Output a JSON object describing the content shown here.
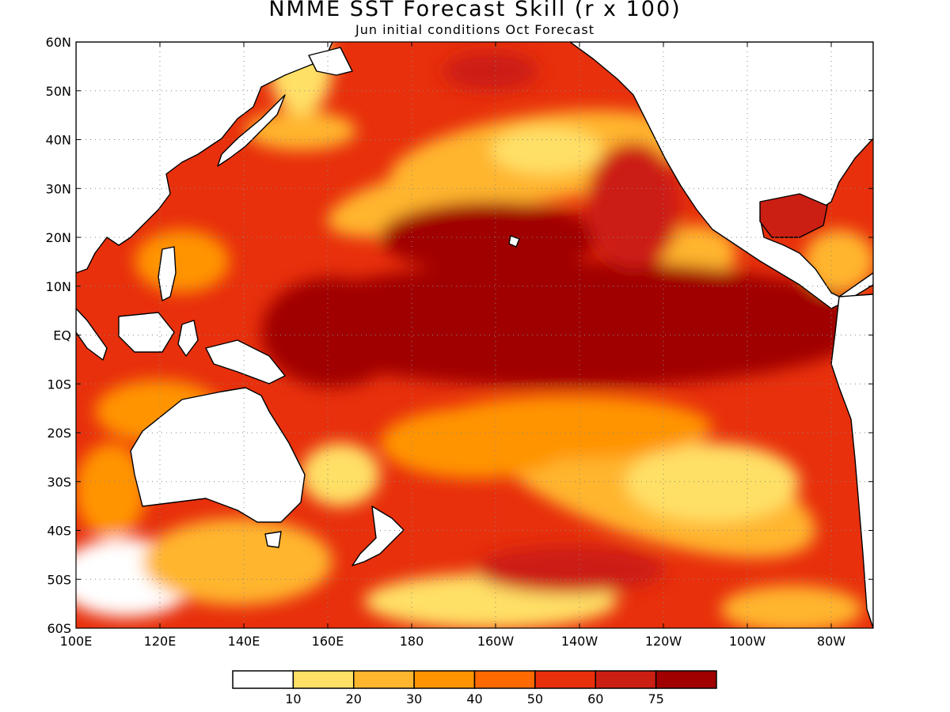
{
  "map": {
    "title": "NMME SST Forecast Skill (r x 100)",
    "subtitle": "Jun initial conditions  Oct Forecast",
    "lat_labels": [
      "60N",
      "50N",
      "40N",
      "30N",
      "20N",
      "10N",
      "EQ",
      "10S",
      "20S",
      "30S",
      "40S",
      "50S",
      "60S"
    ],
    "lon_labels": [
      "100E",
      "120E",
      "140E",
      "160E",
      "180",
      "160W",
      "140W",
      "120W",
      "100W",
      "80W"
    ],
    "lat_range": [
      -60,
      60
    ],
    "lon_range": [
      100,
      290
    ],
    "land_color": "#ffffff",
    "coastline_color": "#000000"
  },
  "colorbar": {
    "labels": [
      "10",
      "20",
      "30",
      "40",
      "50",
      "60",
      "75"
    ],
    "colors": [
      "#ffffff",
      "#ffe066",
      "#ffb52e",
      "#ff9400",
      "#ff6a00",
      "#e8300c",
      "#cc1f14",
      "#a00000"
    ]
  }
}
